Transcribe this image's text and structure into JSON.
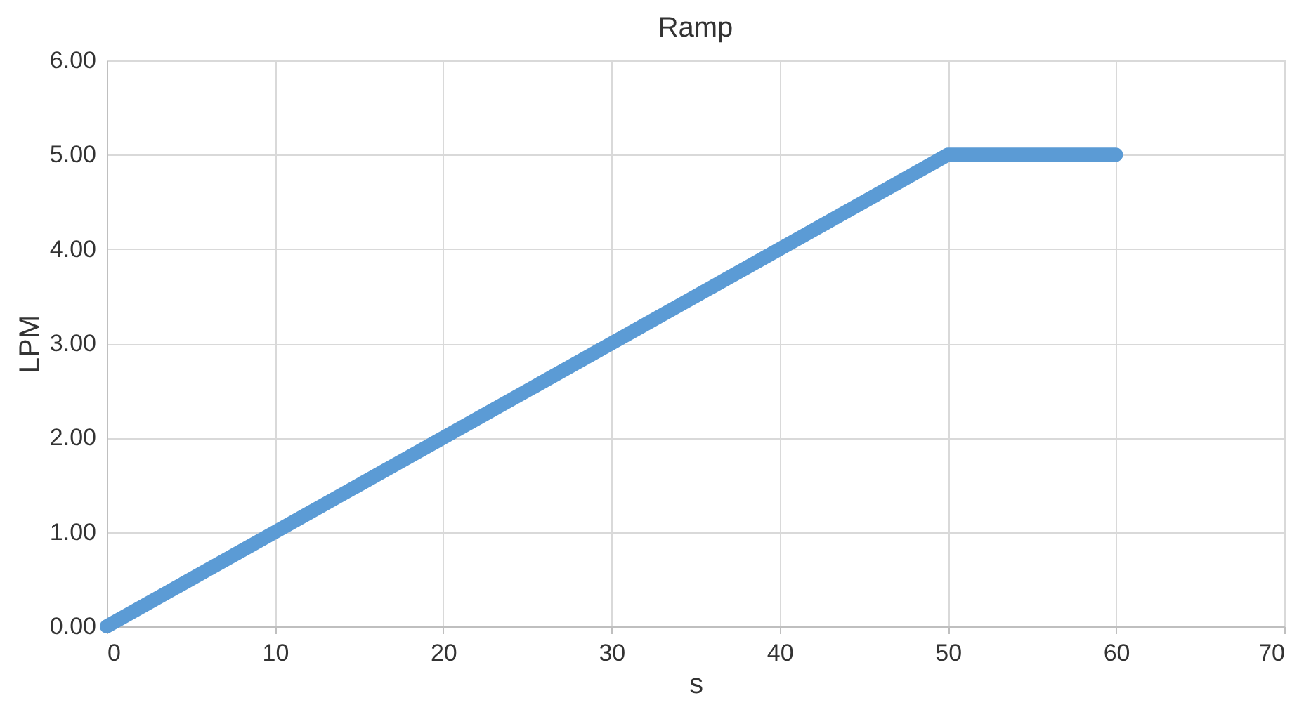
{
  "chart_data": {
    "type": "line",
    "title": "Ramp",
    "xlabel": "s",
    "ylabel": "LPM",
    "x": [
      0,
      50,
      60
    ],
    "series": [
      {
        "color": "#5b9bd5",
        "values": [
          0,
          5,
          5
        ]
      }
    ],
    "xlim": [
      0,
      70
    ],
    "xticks": [
      0,
      10,
      20,
      30,
      40,
      50,
      60,
      70
    ],
    "ylim": [
      0,
      6
    ],
    "yticks": [
      {
        "value": 0,
        "label": "0.00"
      },
      {
        "value": 1,
        "label": "1.00"
      },
      {
        "value": 2,
        "label": "2.00"
      },
      {
        "value": 3,
        "label": "3.00"
      },
      {
        "value": 4,
        "label": "4.00"
      },
      {
        "value": 5,
        "label": "5.00"
      },
      {
        "value": 6,
        "label": "6.00"
      }
    ],
    "grid": true,
    "line_style": "solid"
  }
}
